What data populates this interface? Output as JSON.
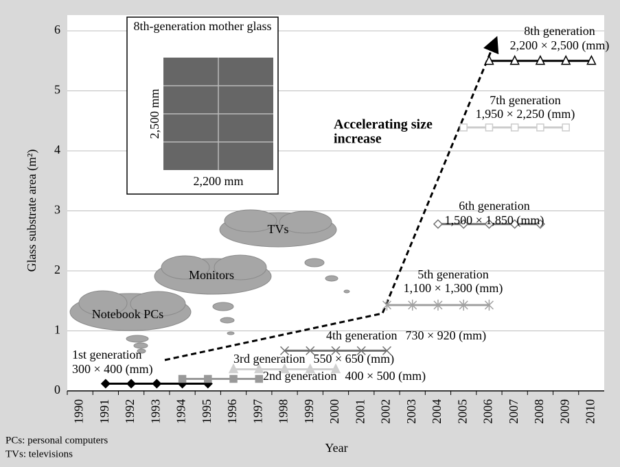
{
  "chart_data": {
    "type": "line",
    "ylabel": "Glass substrate area (m²)",
    "xlabel": "Year",
    "categories": [
      "1990",
      "1991",
      "1992",
      "1993",
      "1994",
      "1995",
      "1996",
      "1997",
      "1998",
      "1999",
      "2000",
      "2001",
      "2002",
      "2003",
      "2004",
      "2005",
      "2006",
      "2007",
      "2008",
      "2009",
      "2010"
    ],
    "xlim": [
      1989.5,
      2010.5
    ],
    "ylim": [
      0,
      6
    ],
    "yticks": [
      0,
      1,
      2,
      3,
      4,
      5,
      6
    ],
    "grid": true,
    "series": [
      {
        "name": "1st generation",
        "size_label": "300 × 400 (mm)",
        "color": "#000000",
        "marker": "diamond-filled",
        "x": [
          1991,
          1992,
          1993,
          1994,
          1995
        ],
        "values": [
          0.12,
          0.12,
          0.12,
          0.12,
          0.12
        ]
      },
      {
        "name": "2nd generation",
        "size_label": "400 × 500 (mm)",
        "color": "#999999",
        "marker": "square-filled",
        "x": [
          1994,
          1995,
          1996,
          1997
        ],
        "values": [
          0.2,
          0.2,
          0.2,
          0.2
        ]
      },
      {
        "name": "3rd generation",
        "size_label": "550 × 650 (mm)",
        "color": "#d0d0d0",
        "marker": "triangle-filled",
        "x": [
          1996,
          1997,
          1998,
          1999,
          2000
        ],
        "values": [
          0.36,
          0.36,
          0.36,
          0.36,
          0.36
        ]
      },
      {
        "name": "4th generation",
        "size_label": "730 × 920 (mm)",
        "color": "#707070",
        "marker": "x",
        "x": [
          1998,
          1999,
          2000,
          2001,
          2002
        ],
        "values": [
          0.67,
          0.67,
          0.67,
          0.67,
          0.67
        ]
      },
      {
        "name": "5th generation",
        "size_label": "1,100 × 1,300 (mm)",
        "color": "#a0a0a0",
        "marker": "asterisk",
        "x": [
          2002,
          2003,
          2004,
          2005,
          2006
        ],
        "values": [
          1.43,
          1.43,
          1.43,
          1.43,
          1.43
        ]
      },
      {
        "name": "6th generation",
        "size_label": "1,500 × 1,850 (mm)",
        "color": "#707070",
        "marker": "diamond-open",
        "x": [
          2004,
          2005,
          2006,
          2007,
          2008
        ],
        "values": [
          2.78,
          2.78,
          2.78,
          2.78,
          2.78
        ]
      },
      {
        "name": "7th generation",
        "size_label": "1,950 × 2,250 (mm)",
        "color": "#cccccc",
        "marker": "square-open",
        "x": [
          2005,
          2006,
          2007,
          2008,
          2009
        ],
        "values": [
          4.39,
          4.39,
          4.39,
          4.39,
          4.39
        ]
      },
      {
        "name": "8th generation",
        "size_label": "2,200 × 2,500 (mm)",
        "color": "#000000",
        "marker": "triangle-open",
        "x": [
          2006,
          2007,
          2008,
          2009,
          2010
        ],
        "values": [
          5.5,
          5.5,
          5.5,
          5.5,
          5.5
        ]
      }
    ],
    "inset": {
      "title": "8th-generation mother glass",
      "height_label": "2,500 mm",
      "width_label": "2,200 mm"
    },
    "clouds": [
      "Notebook PCs",
      "Monitors",
      "TVs"
    ],
    "trend_annotation": [
      "Accelerating size",
      "increase"
    ],
    "notes": [
      "PCs: personal computers",
      "TVs: televisions"
    ]
  }
}
